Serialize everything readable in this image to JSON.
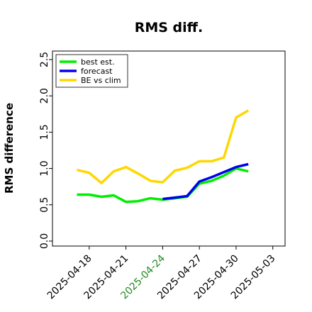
{
  "chart_data": {
    "type": "line",
    "title": "RMS diff.",
    "xlabel": "",
    "ylabel": "RMS difference",
    "ylim": [
      0.0,
      2.5
    ],
    "yticks": [
      "0.0",
      "0.5",
      "1.0",
      "1.5",
      "2.0",
      "2.5"
    ],
    "xlim": [
      "2025-04-15",
      "2025-05-04"
    ],
    "xticks": [
      {
        "date": "2025-04-18",
        "label": "2025-04-18",
        "color": "#000000"
      },
      {
        "date": "2025-04-21",
        "label": "2025-04-21",
        "color": "#000000"
      },
      {
        "date": "2025-04-24",
        "label": "2025-04-24",
        "color": "#228b22"
      },
      {
        "date": "2025-04-27",
        "label": "2025-04-27",
        "color": "#000000"
      },
      {
        "date": "2025-04-30",
        "label": "2025-04-30",
        "color": "#000000"
      },
      {
        "date": "2025-05-03",
        "label": "2025-05-03",
        "color": "#000000"
      }
    ],
    "grid": false,
    "legend_position": "top-left",
    "series": [
      {
        "name": "best est.",
        "color": "#00ee00",
        "points": [
          {
            "x": "2025-04-17",
            "y": 0.64
          },
          {
            "x": "2025-04-18",
            "y": 0.64
          },
          {
            "x": "2025-04-19",
            "y": 0.61
          },
          {
            "x": "2025-04-20",
            "y": 0.63
          },
          {
            "x": "2025-04-21",
            "y": 0.54
          },
          {
            "x": "2025-04-22",
            "y": 0.55
          },
          {
            "x": "2025-04-23",
            "y": 0.59
          },
          {
            "x": "2025-04-24",
            "y": 0.57
          },
          {
            "x": "2025-04-25",
            "y": 0.59
          },
          {
            "x": "2025-04-26",
            "y": 0.61
          },
          {
            "x": "2025-04-27",
            "y": 0.79
          },
          {
            "x": "2025-04-28",
            "y": 0.83
          },
          {
            "x": "2025-04-29",
            "y": 0.9
          },
          {
            "x": "2025-04-30",
            "y": 1.0
          },
          {
            "x": "2025-05-01",
            "y": 0.96
          }
        ]
      },
      {
        "name": "forecast",
        "color": "#0000ee",
        "points": [
          {
            "x": "2025-04-24",
            "y": 0.58
          },
          {
            "x": "2025-04-25",
            "y": 0.6
          },
          {
            "x": "2025-04-26",
            "y": 0.62
          },
          {
            "x": "2025-04-27",
            "y": 0.82
          },
          {
            "x": "2025-04-28",
            "y": 0.88
          },
          {
            "x": "2025-04-29",
            "y": 0.95
          },
          {
            "x": "2025-04-30",
            "y": 1.02
          },
          {
            "x": "2025-05-01",
            "y": 1.06
          }
        ]
      },
      {
        "name": "BE vs clim",
        "color": "#ffd700",
        "points": [
          {
            "x": "2025-04-17",
            "y": 0.98
          },
          {
            "x": "2025-04-18",
            "y": 0.94
          },
          {
            "x": "2025-04-19",
            "y": 0.8
          },
          {
            "x": "2025-04-20",
            "y": 0.96
          },
          {
            "x": "2025-04-21",
            "y": 1.02
          },
          {
            "x": "2025-04-22",
            "y": 0.93
          },
          {
            "x": "2025-04-23",
            "y": 0.83
          },
          {
            "x": "2025-04-24",
            "y": 0.81
          },
          {
            "x": "2025-04-25",
            "y": 0.97
          },
          {
            "x": "2025-04-26",
            "y": 1.01
          },
          {
            "x": "2025-04-27",
            "y": 1.1
          },
          {
            "x": "2025-04-28",
            "y": 1.1
          },
          {
            "x": "2025-04-29",
            "y": 1.15
          },
          {
            "x": "2025-04-30",
            "y": 1.7
          },
          {
            "x": "2025-05-01",
            "y": 1.8
          }
        ]
      }
    ]
  }
}
